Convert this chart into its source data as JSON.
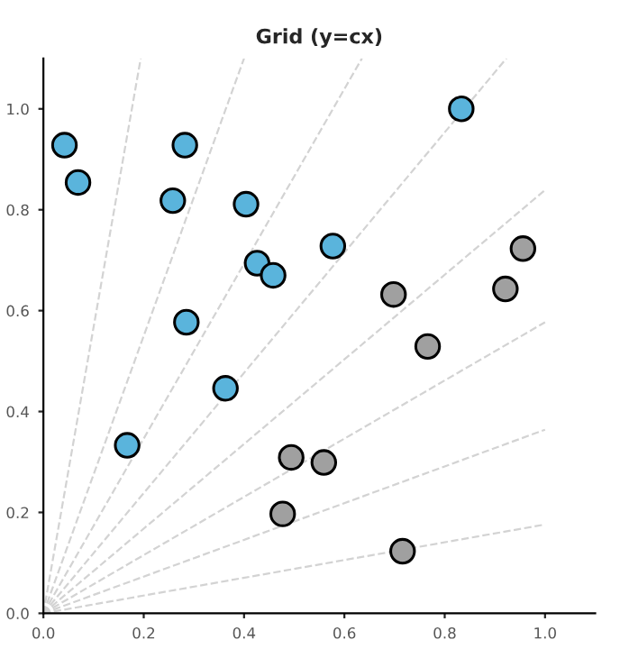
{
  "chart_data": {
    "type": "scatter",
    "title": "Grid (y=cx)",
    "xlim": [
      0,
      1.1
    ],
    "ylim": [
      0,
      1.1
    ],
    "xticks": [
      {
        "value": 0,
        "label": "0.0"
      },
      {
        "value": 0.2,
        "label": "0.2"
      },
      {
        "value": 0.4,
        "label": "0.4"
      },
      {
        "value": 0.6,
        "label": "0.6"
      },
      {
        "value": 0.8,
        "label": "0.8"
      },
      {
        "value": 1,
        "label": "1.0"
      }
    ],
    "yticks": [
      {
        "value": 0,
        "label": "0.0"
      },
      {
        "value": 0.2,
        "label": "0.2"
      },
      {
        "value": 0.4,
        "label": "0.4"
      },
      {
        "value": 0.6,
        "label": "0.6"
      },
      {
        "value": 0.8,
        "label": "0.8"
      },
      {
        "value": 1,
        "label": "1.0"
      }
    ],
    "grid": false,
    "legend": false,
    "series": [
      {
        "type": "line",
        "line_style": "dashed",
        "color": "#d3d3d3",
        "x": [
          0,
          1
        ],
        "values": [
          0,
          0.176
        ]
      },
      {
        "type": "line",
        "line_style": "dashed",
        "color": "#d3d3d3",
        "x": [
          0,
          1
        ],
        "values": [
          0,
          0.364
        ]
      },
      {
        "type": "line",
        "line_style": "dashed",
        "color": "#d3d3d3",
        "x": [
          0,
          1
        ],
        "values": [
          0,
          0.577
        ]
      },
      {
        "type": "line",
        "line_style": "dashed",
        "color": "#d3d3d3",
        "x": [
          0,
          1
        ],
        "values": [
          0,
          0.839
        ]
      },
      {
        "type": "line",
        "line_style": "dashed",
        "color": "#d3d3d3",
        "x": [
          0,
          0.923
        ],
        "values": [
          0,
          1.1
        ]
      },
      {
        "type": "line",
        "line_style": "dashed",
        "color": "#d3d3d3",
        "x": [
          0,
          0.635
        ],
        "values": [
          0,
          1.1
        ]
      },
      {
        "type": "line",
        "line_style": "dashed",
        "color": "#d3d3d3",
        "x": [
          0,
          0.4
        ],
        "values": [
          0,
          1.1
        ]
      },
      {
        "type": "line",
        "line_style": "dashed",
        "color": "#d3d3d3",
        "x": [
          0,
          0.194
        ],
        "values": [
          0,
          1.1
        ]
      },
      {
        "marker": "circle",
        "color": "#5ab4dc",
        "x": [
          0.042,
          0.069,
          0.282,
          0.258,
          0.404,
          0.426,
          0.458,
          0.577,
          0.833,
          0.285,
          0.363,
          0.167
        ],
        "values": [
          0.928,
          0.854,
          0.928,
          0.818,
          0.811,
          0.694,
          0.67,
          0.728,
          1.0,
          0.577,
          0.446,
          0.333
        ]
      },
      {
        "marker": "circle",
        "color": "#a0a0a0",
        "x": [
          0.698,
          0.921,
          0.956,
          0.766,
          0.494,
          0.559,
          0.477,
          0.716
        ],
        "values": [
          0.632,
          0.643,
          0.723,
          0.529,
          0.309,
          0.299,
          0.197,
          0.123
        ]
      }
    ]
  }
}
